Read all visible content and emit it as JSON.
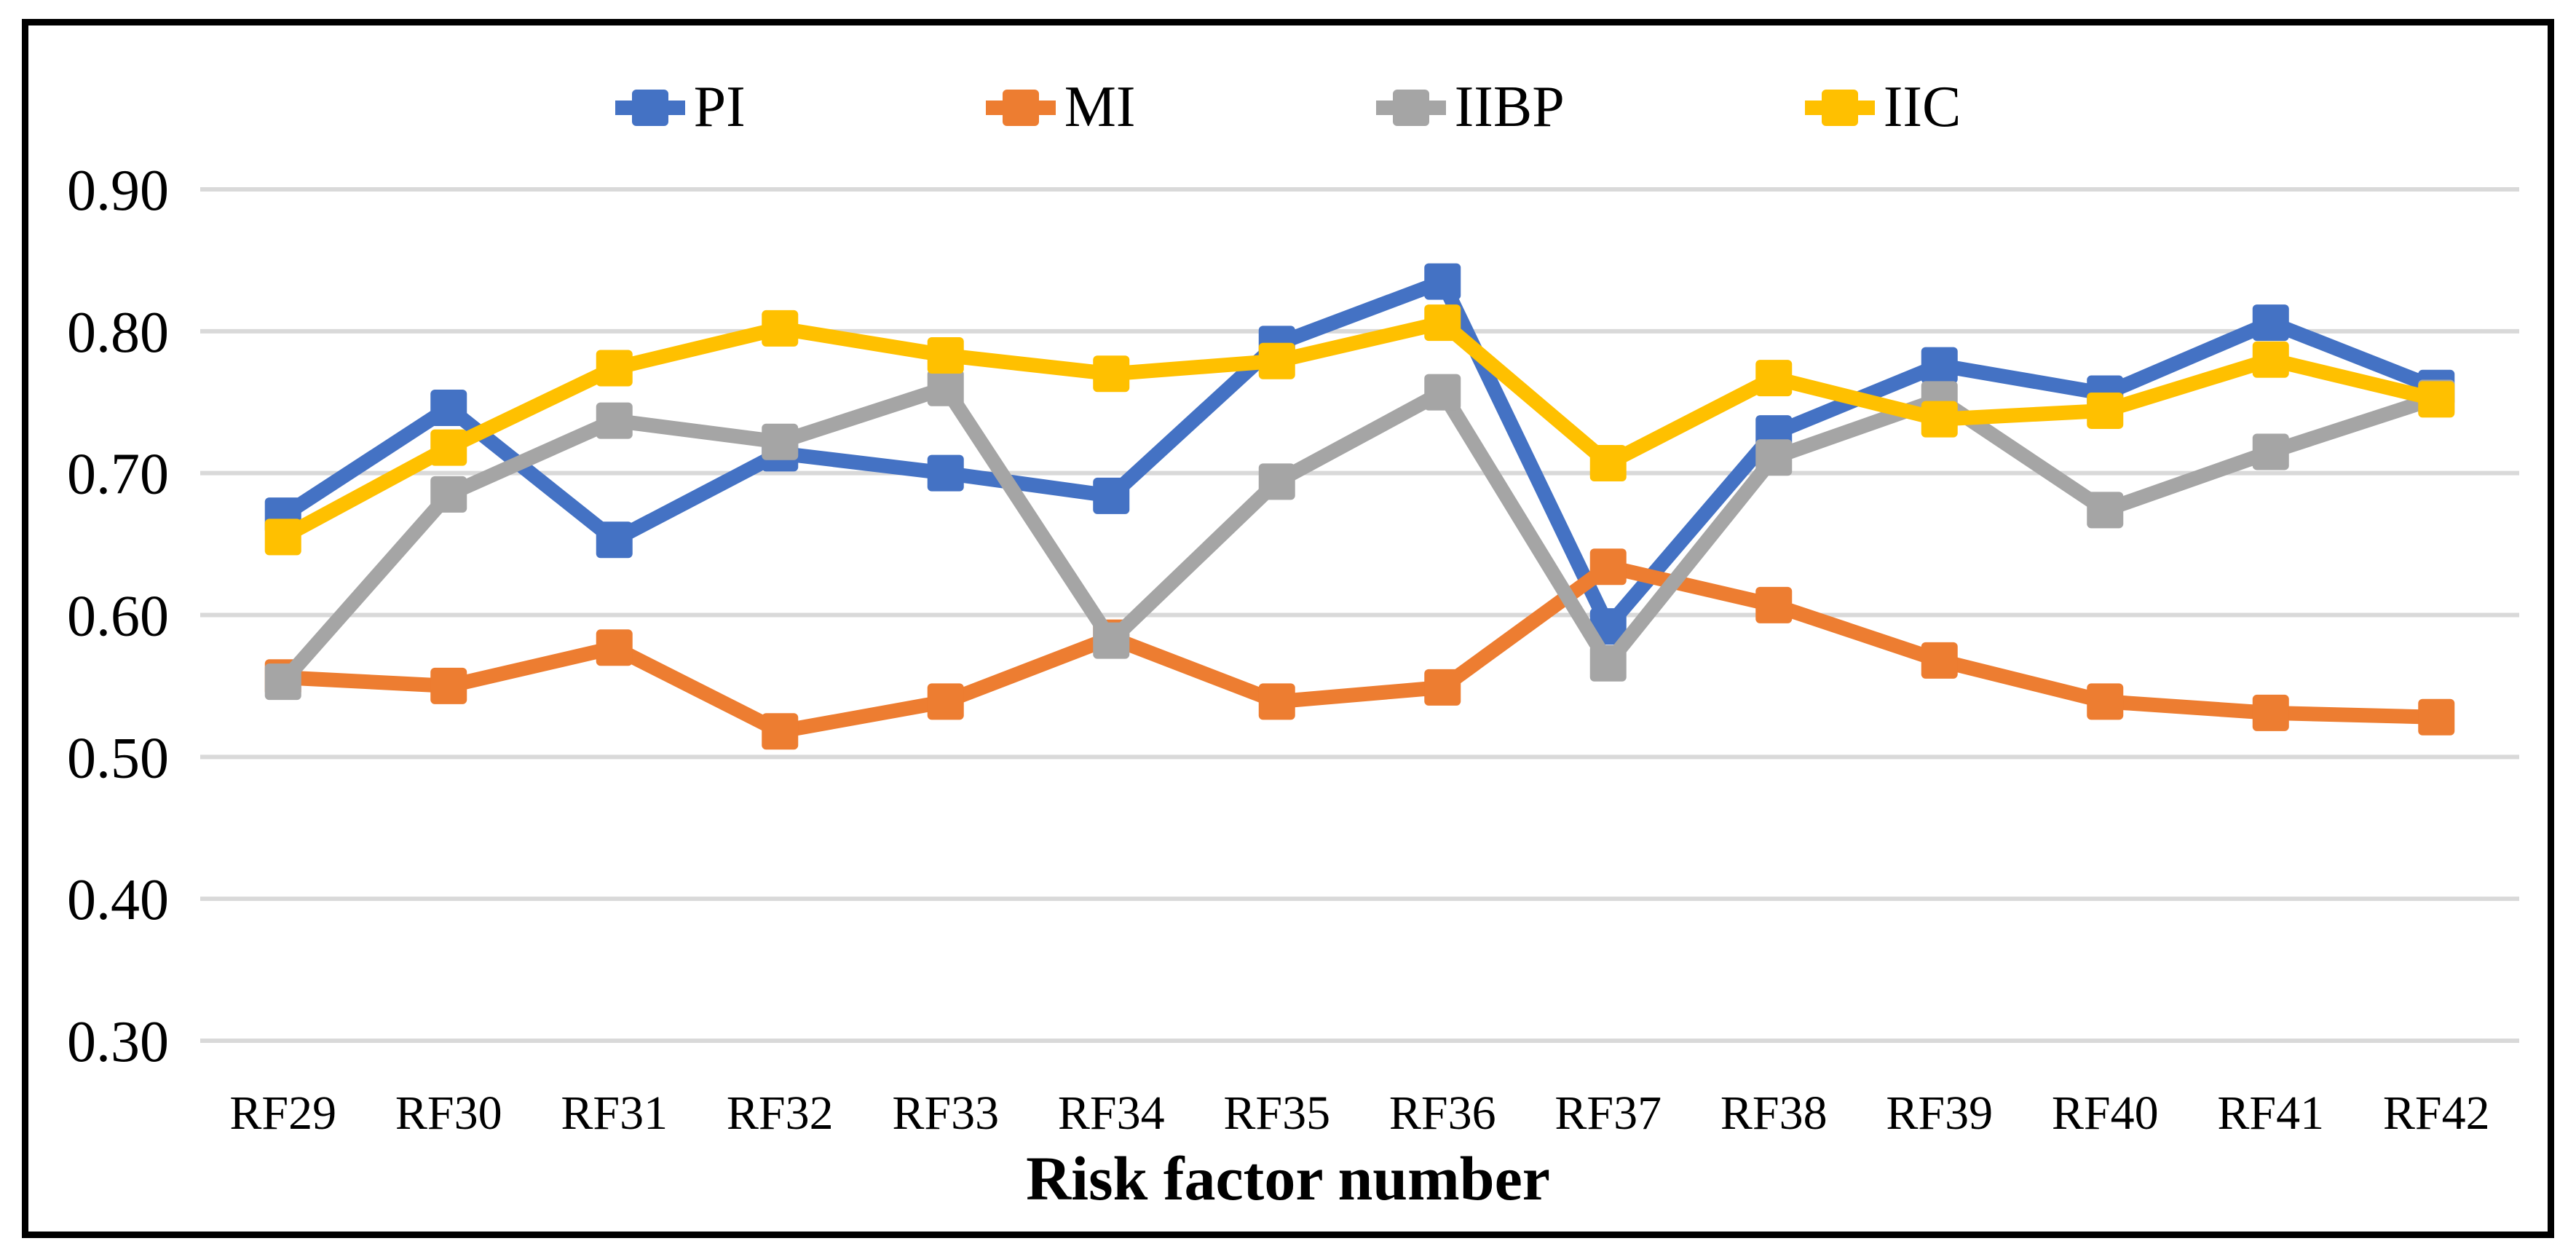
{
  "figure": {
    "background": "#ffffff",
    "border_color": "#000000"
  },
  "chart_data": {
    "type": "line",
    "title": "",
    "xlabel": "Risk factor number",
    "ylabel": "",
    "legend_position": "top",
    "grid": "horizontal",
    "gridline_color": "#D9D9D9",
    "marker": "square",
    "categories": [
      "RF29",
      "RF30",
      "RF31",
      "RF32",
      "RF33",
      "RF34",
      "RF35",
      "RF36",
      "RF37",
      "RF38",
      "RF39",
      "RF40",
      "RF41",
      "RF42"
    ],
    "series": [
      {
        "name": "PI",
        "color": "#4472C4",
        "values": [
          0.67,
          0.746,
          0.653,
          0.714,
          0.7,
          0.684,
          0.791,
          0.835,
          0.592,
          0.728,
          0.776,
          0.756,
          0.806,
          0.76
        ]
      },
      {
        "name": "MI",
        "color": "#ED7D31",
        "values": [
          0.556,
          0.55,
          0.577,
          0.518,
          0.539,
          0.584,
          0.539,
          0.549,
          0.634,
          0.607,
          0.568,
          0.539,
          0.531,
          0.528
        ]
      },
      {
        "name": "IIBP",
        "color": "#A5A5A5",
        "values": [
          0.553,
          0.685,
          0.737,
          0.722,
          0.76,
          0.582,
          0.694,
          0.757,
          0.566,
          0.711,
          0.752,
          0.674,
          0.715,
          0.753
        ]
      },
      {
        "name": "IIC",
        "color": "#FFC000",
        "values": [
          0.655,
          0.718,
          0.774,
          0.802,
          0.783,
          0.77,
          0.779,
          0.806,
          0.707,
          0.767,
          0.738,
          0.744,
          0.78,
          0.752
        ]
      }
    ],
    "y_axis": {
      "min": 0.3,
      "max": 0.9,
      "step": 0.1,
      "tick_labels": [
        "0.90",
        "0.80",
        "0.70",
        "0.60",
        "0.50",
        "0.40",
        "0.30"
      ]
    }
  }
}
